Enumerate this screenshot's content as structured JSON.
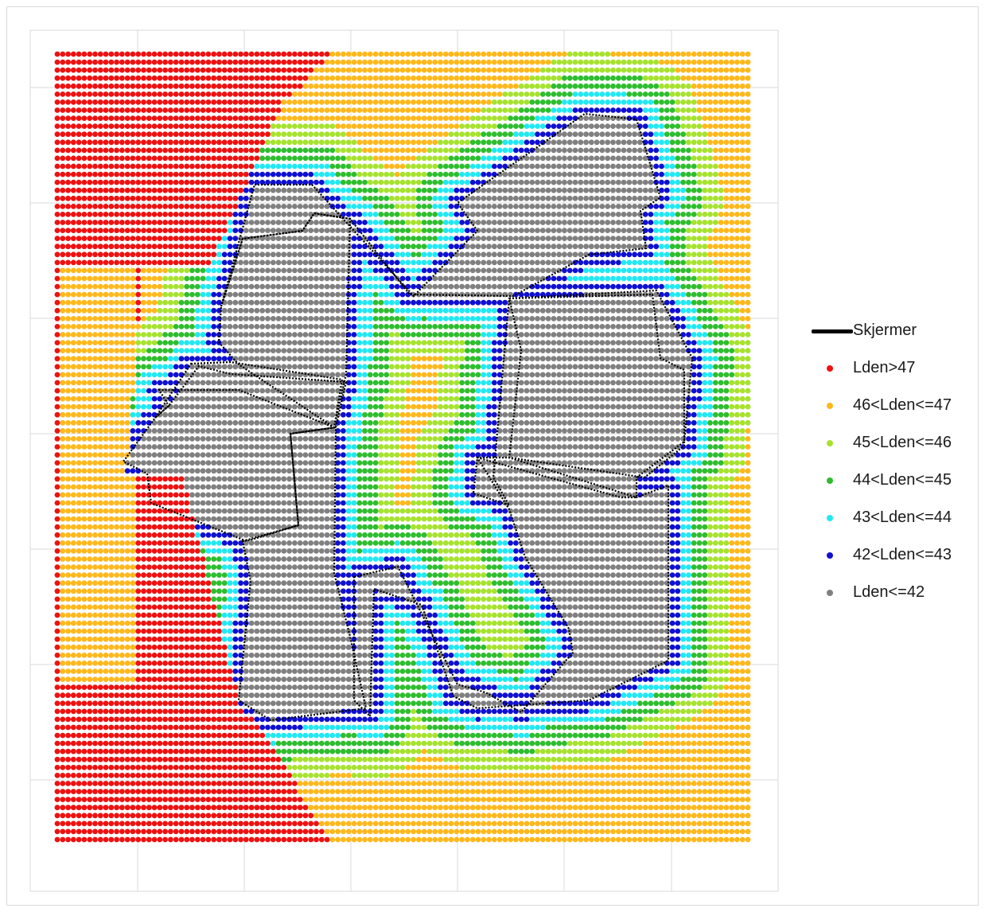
{
  "chart_data": {
    "type": "scatter",
    "title": "",
    "xlabel": "",
    "ylabel": "",
    "grid": true,
    "legend_position": "right",
    "categories": [
      {
        "label": "Lden>47",
        "color": "#ee1111"
      },
      {
        "label": "46<Lden<=47",
        "color": "#ffb81c"
      },
      {
        "label": "45<Lden<=46",
        "color": "#a6e22e"
      },
      {
        "label": "44<Lden<=45",
        "color": "#2ebd2e"
      },
      {
        "label": "43<Lden<=44",
        "color": "#22e8f2"
      },
      {
        "label": "42<Lden<=43",
        "color": "#1010d0"
      },
      {
        "label": "Lden<=42",
        "color": "#808080"
      }
    ],
    "screen_series": {
      "label": "Skjermer",
      "color": "#000000"
    },
    "grid_points": {
      "columns": 129,
      "rows": 99
    }
  }
}
